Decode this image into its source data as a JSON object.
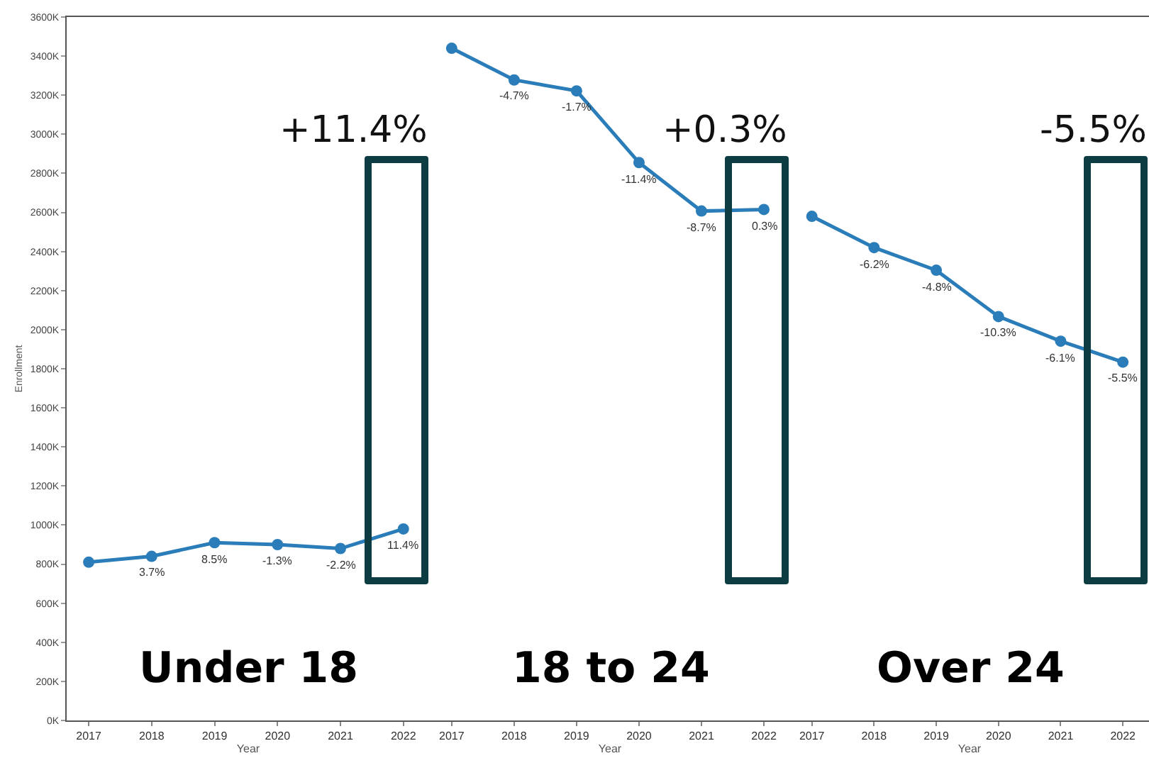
{
  "chart_data": [
    {
      "type": "line",
      "title": "Under 18",
      "xlabel": "Year",
      "ylabel": "Enrollment",
      "categories": [
        "2017",
        "2018",
        "2019",
        "2020",
        "2021",
        "2022"
      ],
      "values": [
        810,
        840,
        910,
        900,
        880,
        980
      ],
      "color": "#2a7db8",
      "marker": "circle",
      "ylim": [
        0,
        3600
      ],
      "yticks": [
        {
          "value": 0,
          "label": "0K"
        },
        {
          "value": 200,
          "label": "200K"
        },
        {
          "value": 400,
          "label": "400K"
        },
        {
          "value": 600,
          "label": "600K"
        },
        {
          "value": 800,
          "label": "800K"
        },
        {
          "value": 1000,
          "label": "1000K"
        },
        {
          "value": 1200,
          "label": "1200K"
        },
        {
          "value": 1400,
          "label": "1400K"
        },
        {
          "value": 1600,
          "label": "1600K"
        },
        {
          "value": 1800,
          "label": "1800K"
        },
        {
          "value": 2000,
          "label": "2000K"
        },
        {
          "value": 2200,
          "label": "2200K"
        },
        {
          "value": 2400,
          "label": "2400K"
        },
        {
          "value": 2600,
          "label": "2600K"
        },
        {
          "value": 2800,
          "label": "2800K"
        },
        {
          "value": 3000,
          "label": "3000K"
        },
        {
          "value": 3200,
          "label": "3200K"
        },
        {
          "value": 3400,
          "label": "3400K"
        },
        {
          "value": 3600,
          "label": "3600K"
        }
      ],
      "grid": false,
      "annotations": [
        "+11.4%",
        {
          "text": "3.7%",
          "x": "2018",
          "y": 840
        },
        {
          "text": "8.5%",
          "x": "2019",
          "y": 910
        },
        {
          "text": "-1.3%",
          "x": "2020",
          "y": 900
        },
        {
          "text": "-2.2%",
          "x": "2021",
          "y": 880
        },
        {
          "text": "11.4%",
          "x": "2022",
          "y": 980
        }
      ]
    },
    {
      "type": "line",
      "title": "18 to 24",
      "xlabel": "Year",
      "categories": [
        "2017",
        "2018",
        "2019",
        "2020",
        "2021",
        "2022"
      ],
      "values": [
        3440,
        3278,
        3222,
        2855,
        2607,
        2615
      ],
      "color": "#2a7db8",
      "marker": "circle",
      "ylim": [
        0,
        3600
      ],
      "tick_labels": "x",
      "grid": false,
      "annotations": [
        "+0.3%",
        {
          "text": "-4.7%",
          "x": "2018",
          "y": 3278
        },
        {
          "text": "-1.7%",
          "x": "2019",
          "y": 3222
        },
        {
          "text": "-11.4%",
          "x": "2020",
          "y": 2855
        },
        {
          "text": "-8.7%",
          "x": "2021",
          "y": 2607
        },
        {
          "text": "0.3%",
          "x": "2022",
          "y": 2615
        }
      ]
    },
    {
      "type": "line",
      "title": "Over 24",
      "xlabel": "Year",
      "categories": [
        "2017",
        "2018",
        "2019",
        "2020",
        "2021",
        "2022"
      ],
      "values": [
        2580,
        2420,
        2304,
        2067,
        1941,
        1834
      ],
      "color": "#2a7db8",
      "marker": "circle",
      "ylim": [
        0,
        3600
      ],
      "tick_labels": "x",
      "grid": false,
      "annotations": [
        "-5.5%",
        {
          "text": "-6.2%",
          "x": "2018",
          "y": 2420
        },
        {
          "text": "-4.8%",
          "x": "2019",
          "y": 2304
        },
        {
          "text": "-10.3%",
          "x": "2020",
          "y": 2067
        },
        {
          "text": "-6.1%",
          "x": "2021",
          "y": 1941
        },
        {
          "text": "-5.5%",
          "x": "2022",
          "y": 1834
        }
      ]
    }
  ]
}
